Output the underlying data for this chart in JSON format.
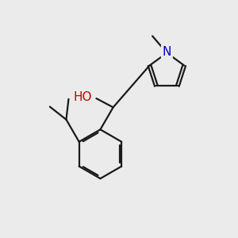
{
  "bg_color": "#ebebeb",
  "bond_color": "#1a1a1a",
  "O_color": "#cc0000",
  "N_color": "#0000cc",
  "line_width": 1.6,
  "font_size_atom": 11,
  "font_size_methyl": 9
}
